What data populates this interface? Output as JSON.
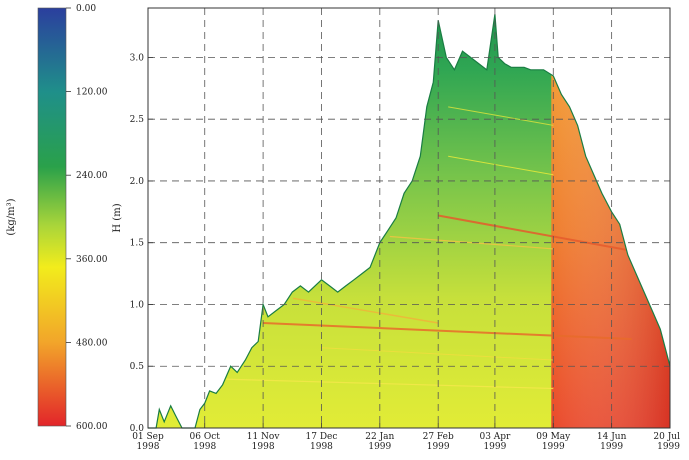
{
  "chart_data": {
    "type": "area",
    "title": "",
    "xlabel": "",
    "ylabel": "H (m)",
    "ylim": [
      0,
      3.4
    ],
    "yticks": [
      "0.0",
      "0.5",
      "1.0",
      "1.5",
      "2.0",
      "2.5",
      "3.0"
    ],
    "xticks": [
      {
        "date": "01 Sep",
        "year": "1998"
      },
      {
        "date": "06 Oct",
        "year": "1998"
      },
      {
        "date": "11 Nov",
        "year": "1998"
      },
      {
        "date": "17 Dec",
        "year": "1998"
      },
      {
        "date": "22 Jan",
        "year": "1999"
      },
      {
        "date": "27 Feb",
        "year": "1999"
      },
      {
        "date": "03 Apr",
        "year": "1999"
      },
      {
        "date": "09 May",
        "year": "1999"
      },
      {
        "date": "14 Jun",
        "year": "1999"
      },
      {
        "date": "20 Jul",
        "year": "1999"
      }
    ],
    "grid": true,
    "colorbar": {
      "label": "(kg/m³)",
      "ticks": [
        "0.00",
        "120.00",
        "240.00",
        "360.00",
        "480.00",
        "600.00"
      ],
      "colors": [
        "#2b3f9e",
        "#1f8f8a",
        "#2aa14a",
        "#a9d53a",
        "#f2ec1c",
        "#f2a52a",
        "#e2252a"
      ]
    },
    "snow_depth": {
      "x_dates": [
        "01 Sep 1998",
        "06 Sep 1998",
        "08 Sep 1998",
        "11 Sep 1998",
        "15 Sep 1998",
        "18 Sep 1998",
        "22 Sep 1998",
        "26 Sep 1998",
        "30 Sep 1998",
        "03 Oct 1998",
        "06 Oct 1998",
        "09 Oct 1998",
        "13 Oct 1998",
        "17 Oct 1998",
        "22 Oct 1998",
        "26 Oct 1998",
        "31 Oct 1998",
        "04 Nov 1998",
        "08 Nov 1998",
        "11 Nov 1998",
        "14 Nov 1998",
        "19 Nov 1998",
        "24 Nov 1998",
        "29 Nov 1998",
        "04 Dec 1998",
        "09 Dec 1998",
        "13 Dec 1998",
        "17 Dec 1998",
        "22 Dec 1998",
        "27 Dec 1998",
        "01 Jan 1999",
        "06 Jan 1999",
        "11 Jan 1999",
        "16 Jan 1999",
        "22 Jan 1999",
        "27 Jan 1999",
        "01 Feb 1999",
        "06 Feb 1999",
        "11 Feb 1999",
        "16 Feb 1999",
        "20 Feb 1999",
        "24 Feb 1999",
        "27 Feb 1999",
        "04 Mar 1999",
        "09 Mar 1999",
        "14 Mar 1999",
        "19 Mar 1999",
        "24 Mar 1999",
        "29 Mar 1999",
        "03 Apr 1999",
        "05 Apr 1999",
        "09 Apr 1999",
        "13 Apr 1999",
        "17 Apr 1999",
        "21 Apr 1999",
        "25 Apr 1999",
        "29 Apr 1999",
        "03 May 1999",
        "09 May 1999",
        "14 May 1999",
        "19 May 1999",
        "24 May 1999",
        "29 May 1999",
        "03 Jun 1999",
        "08 Jun 1999",
        "14 Jun 1999",
        "19 Jun 1999",
        "24 Jun 1999",
        "29 Jun 1999",
        "04 Jul 1999",
        "09 Jul 1999",
        "14 Jul 1999",
        "20 Jul 1999"
      ],
      "h": [
        0.0,
        0.0,
        0.15,
        0.05,
        0.18,
        0.1,
        0.0,
        0.0,
        0.0,
        0.15,
        0.2,
        0.3,
        0.28,
        0.35,
        0.5,
        0.45,
        0.55,
        0.65,
        0.7,
        1.0,
        0.9,
        0.95,
        1.0,
        1.1,
        1.15,
        1.1,
        1.15,
        1.2,
        1.15,
        1.1,
        1.15,
        1.2,
        1.25,
        1.3,
        1.5,
        1.6,
        1.7,
        1.9,
        2.0,
        2.2,
        2.6,
        2.8,
        3.3,
        3.0,
        2.9,
        3.05,
        3.0,
        2.95,
        2.9,
        3.35,
        3.0,
        2.95,
        2.92,
        2.92,
        2.92,
        2.9,
        2.9,
        2.9,
        2.85,
        2.7,
        2.6,
        2.45,
        2.2,
        2.05,
        1.9,
        1.75,
        1.65,
        1.4,
        1.25,
        1.1,
        0.95,
        0.8,
        0.5
      ]
    }
  }
}
